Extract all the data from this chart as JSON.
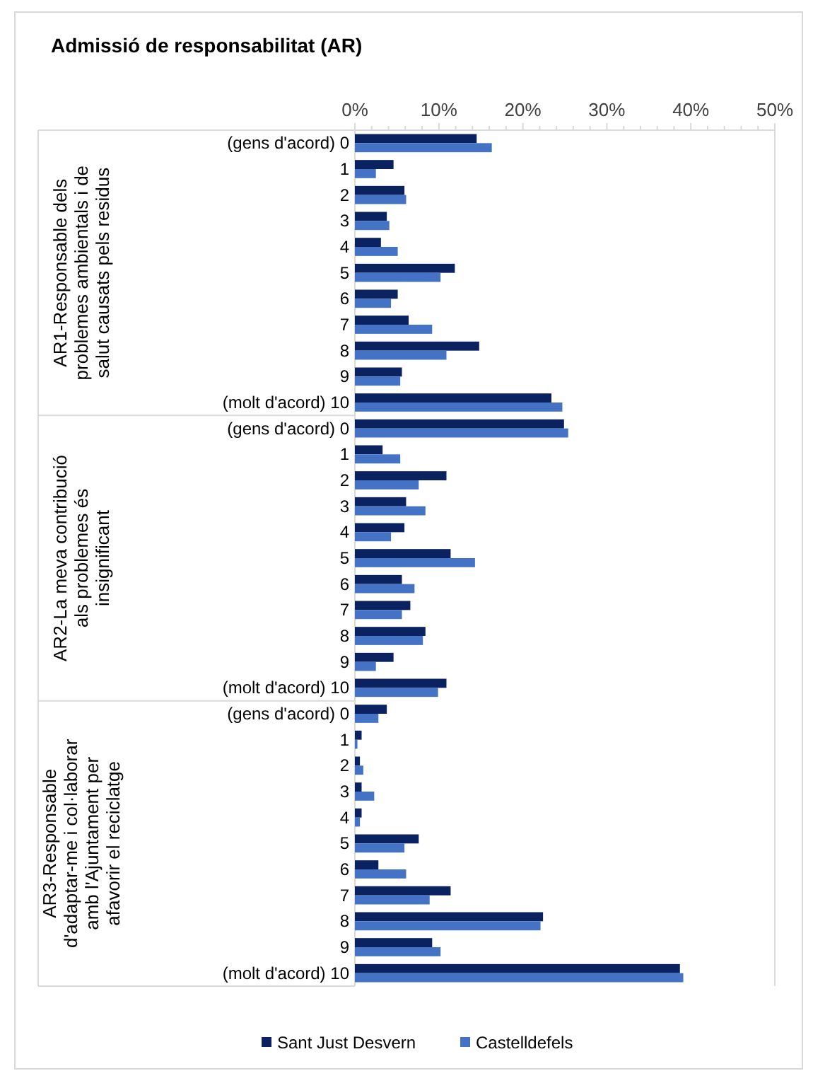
{
  "chart_data": {
    "type": "bar",
    "orientation": "horizontal",
    "title": "Admissió de responsabilitat (AR)",
    "categories": [
      "(gens d'acord) 0",
      "1",
      "2",
      "3",
      "4",
      "5",
      "6",
      "7",
      "8",
      "9",
      "(molt d'acord) 10",
      "(gens d'acord) 0",
      "1",
      "2",
      "3",
      "4",
      "5",
      "6",
      "7",
      "8",
      "9",
      "(molt d'acord) 10",
      "(gens d'acord) 0",
      "1",
      "2",
      "3",
      "4",
      "5",
      "6",
      "7",
      "8",
      "9",
      "(molt d'acord) 10"
    ],
    "annotations": [
      "AR1-Responsable dels problemes ambientals i de salut causats pels residus",
      "AR2-La meva contribució als problemes és insignificant",
      "AR3-Responsable d'adaptar-me i col·laborar amb l'Ajuntament per afavorir el reciclatge"
    ],
    "series": [
      {
        "name": "Sant Just Desvern",
        "color": "#0b2260",
        "values": [
          14.5,
          4.6,
          5.9,
          3.8,
          3.1,
          11.9,
          5.1,
          6.4,
          14.8,
          5.6,
          23.4,
          24.9,
          3.3,
          10.9,
          6.1,
          5.9,
          11.4,
          5.6,
          6.6,
          8.4,
          4.6,
          10.9,
          3.8,
          0.8,
          0.6,
          0.8,
          0.8,
          7.6,
          2.8,
          11.4,
          22.4,
          9.2,
          38.7
        ]
      },
      {
        "name": "Castelldefels",
        "color": "#4472c4",
        "values": [
          16.3,
          2.5,
          6.1,
          4.1,
          5.1,
          10.2,
          4.3,
          9.2,
          10.9,
          5.4,
          24.7,
          25.4,
          5.4,
          7.6,
          8.4,
          4.3,
          14.3,
          7.1,
          5.6,
          8.1,
          2.5,
          9.9,
          2.8,
          0.3,
          1.0,
          2.3,
          0.6,
          5.9,
          6.1,
          8.9,
          22.1,
          10.2,
          39.1
        ]
      }
    ],
    "xlim": [
      0,
      50
    ],
    "xticks": [
      {
        "value": 0,
        "label": "0%"
      },
      {
        "value": 2,
        "label": null
      },
      {
        "value": 4,
        "label": null
      },
      {
        "value": 6,
        "label": null
      },
      {
        "value": 8,
        "label": null
      },
      {
        "value": 10,
        "label": "10%"
      },
      {
        "value": 12,
        "label": null
      },
      {
        "value": 14,
        "label": null
      },
      {
        "value": 16,
        "label": null
      },
      {
        "value": 18,
        "label": null
      },
      {
        "value": 20,
        "label": "20%"
      },
      {
        "value": 22,
        "label": null
      },
      {
        "value": 24,
        "label": null
      },
      {
        "value": 26,
        "label": null
      },
      {
        "value": 28,
        "label": null
      },
      {
        "value": 30,
        "label": "30%"
      },
      {
        "value": 32,
        "label": null
      },
      {
        "value": 34,
        "label": null
      },
      {
        "value": 36,
        "label": null
      },
      {
        "value": 38,
        "label": null
      },
      {
        "value": 40,
        "label": "40%"
      },
      {
        "value": 42,
        "label": null
      },
      {
        "value": 44,
        "label": null
      },
      {
        "value": 46,
        "label": null
      },
      {
        "value": 48,
        "label": null
      },
      {
        "value": 50,
        "label": "50%"
      }
    ],
    "grid": false,
    "legend": "bottom"
  }
}
